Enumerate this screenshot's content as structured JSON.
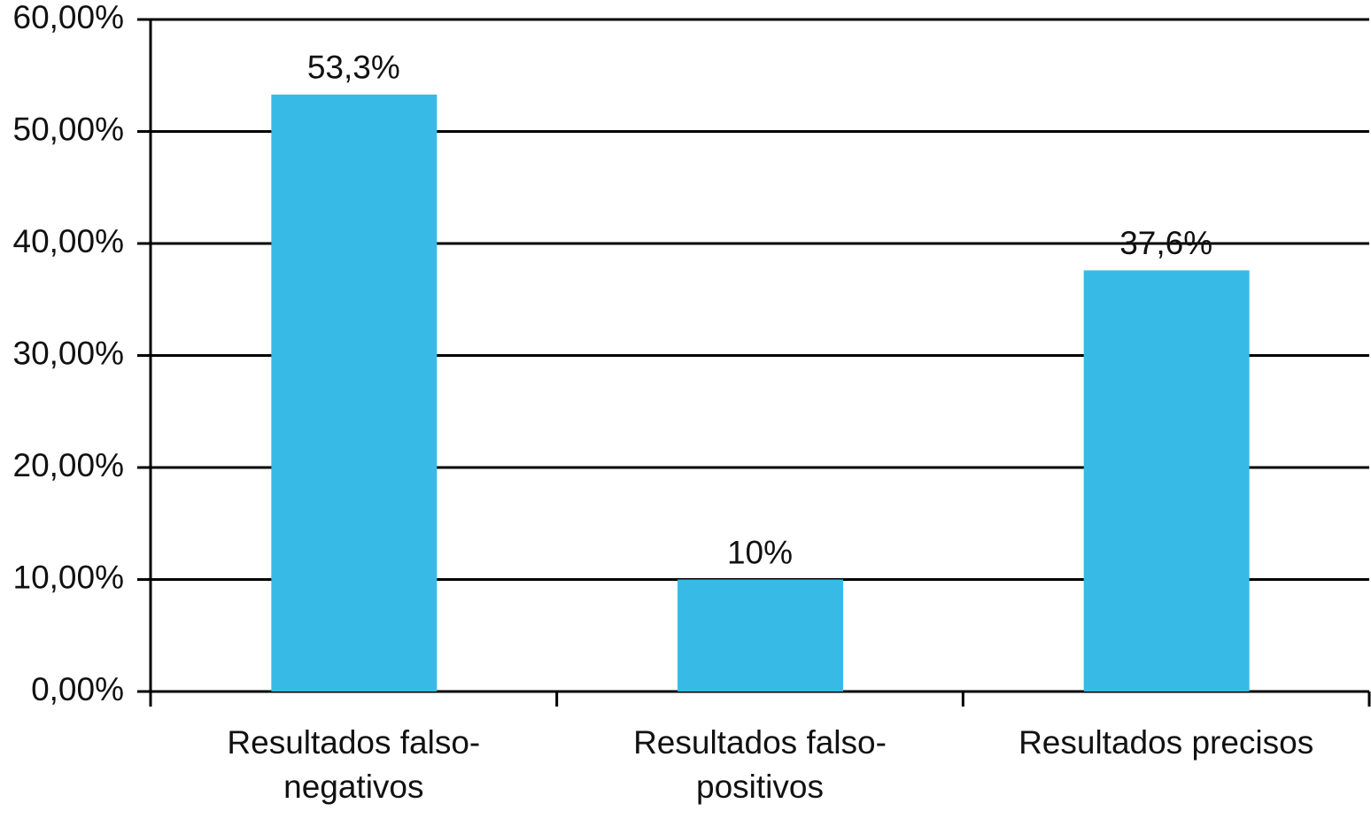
{
  "chart_data": {
    "type": "bar",
    "categories": [
      "Resultados falso-negativos",
      "Resultados falso-positivos",
      "Resultados precisos"
    ],
    "values": [
      53.3,
      10,
      37.6
    ],
    "value_labels": [
      "53,3%",
      "10%",
      "37,6%"
    ],
    "color": "#37bbe6",
    "ylim": [
      0,
      60
    ],
    "yticks": [
      {
        "value": 0,
        "label": "0,00%"
      },
      {
        "value": 10,
        "label": "10,00%"
      },
      {
        "value": 20,
        "label": "20,00%"
      },
      {
        "value": 30,
        "label": "30,00%"
      },
      {
        "value": 40,
        "label": "40,00%"
      },
      {
        "value": 50,
        "label": "50,00%"
      },
      {
        "value": 60,
        "label": "60,00%"
      }
    ],
    "grid": true
  }
}
